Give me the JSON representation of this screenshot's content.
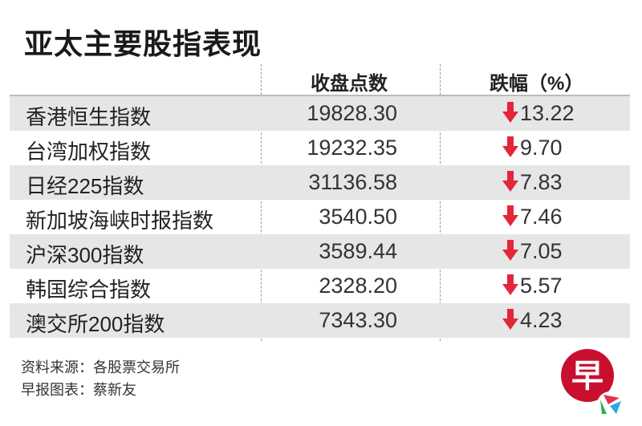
{
  "title": "亚太主要股指表现",
  "chart_data": {
    "type": "table",
    "columns": [
      "",
      "收盘点数",
      "跌幅（%）"
    ],
    "rows": [
      {
        "name": "香港恒生指数",
        "close": "19828.30",
        "change": "13.22"
      },
      {
        "name": "台湾加权指数",
        "close": "19232.35",
        "change": "9.70"
      },
      {
        "name": "日经225指数",
        "close": "31136.58",
        "change": "7.83"
      },
      {
        "name": "新加坡海峡时报指数",
        "close": "3540.50",
        "change": "7.46"
      },
      {
        "name": "沪深300指数",
        "close": "3589.44",
        "change": "7.05"
      },
      {
        "name": "韩国综合指数",
        "close": "2328.20",
        "change": "5.57"
      },
      {
        "name": "澳交所200指数",
        "close": "7343.30",
        "change": "4.23"
      }
    ],
    "change_direction": "down",
    "arrow_color": "#e3263a",
    "stripe_color": "#e6e6e6"
  },
  "footer": {
    "source": "资料来源：各股票交易所",
    "credit": "早报图表：蔡新友"
  },
  "logo": {
    "text": "早",
    "color": "#c8102e"
  }
}
